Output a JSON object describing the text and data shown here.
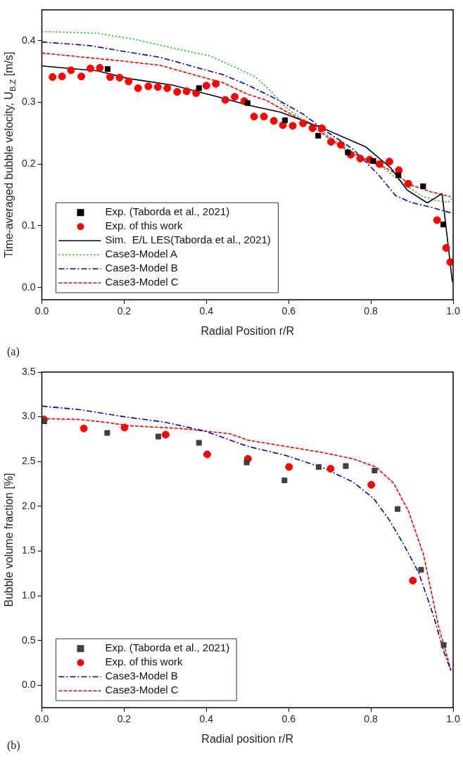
{
  "chart_data": [
    {
      "type": "line",
      "xlabel": "Radial Position r/R",
      "ylabel": "Time-averaged bubble velocity, U$_{B,Z}$ [m/s]",
      "annotations": [
        "(a)"
      ],
      "xlim": [
        0,
        1
      ],
      "ylim": [
        -0.02,
        0.45
      ],
      "xticks": [
        {
          "value": 0,
          "label": "0.0"
        },
        {
          "value": 0.2,
          "label": "0.2"
        },
        {
          "value": 0.4,
          "label": "0.4"
        },
        {
          "value": 0.6,
          "label": "0.6"
        },
        {
          "value": 0.8,
          "label": "0.8"
        },
        {
          "value": 1,
          "label": "1.0"
        }
      ],
      "yticks": [
        {
          "value": 0,
          "label": "0.0"
        },
        {
          "value": 0.1,
          "label": "0.1"
        },
        {
          "value": 0.2,
          "label": "0.2"
        },
        {
          "value": 0.3,
          "label": "0.3"
        },
        {
          "value": 0.4,
          "label": "0.4"
        }
      ],
      "grid": false,
      "legend": "bottom left",
      "series": [
        {
          "name": "Exp. (Taborda et al., 2021)",
          "type": "scatter",
          "marker": "square",
          "color": "#000000",
          "x": [
            0.16,
            0.382,
            0.5,
            0.591,
            0.672,
            0.744,
            0.806,
            0.867,
            0.927,
            0.976
          ],
          "values": [
            0.354,
            0.323,
            0.299,
            0.271,
            0.246,
            0.219,
            0.205,
            0.182,
            0.164,
            0.102
          ]
        },
        {
          "name": "Exp. of this work",
          "type": "scatter",
          "marker": "circle",
          "color": "#ff0000",
          "x": [
            0.026,
            0.049,
            0.071,
            0.096,
            0.118,
            0.141,
            0.166,
            0.189,
            0.211,
            0.234,
            0.259,
            0.282,
            0.305,
            0.329,
            0.352,
            0.375,
            0.4,
            0.423,
            0.446,
            0.469,
            0.492,
            0.516,
            0.54,
            0.564,
            0.586,
            0.61,
            0.635,
            0.658,
            0.681,
            0.703,
            0.727,
            0.751,
            0.774,
            0.797,
            0.821,
            0.845,
            0.868,
            0.891,
            0.961,
            0.983,
            0.993
          ],
          "values": [
            0.341,
            0.342,
            0.352,
            0.342,
            0.355,
            0.356,
            0.341,
            0.34,
            0.334,
            0.323,
            0.326,
            0.325,
            0.323,
            0.317,
            0.318,
            0.315,
            0.327,
            0.33,
            0.304,
            0.309,
            0.302,
            0.277,
            0.277,
            0.27,
            0.263,
            0.262,
            0.266,
            0.258,
            0.258,
            0.236,
            0.231,
            0.215,
            0.209,
            0.207,
            0.2,
            0.204,
            0.19,
            0.168,
            0.109,
            0.064,
            0.041
          ]
        },
        {
          "name": "Sim.  E/L LES(Taborda et al., 2021)",
          "type": "line",
          "marker": "none",
          "line_style": "solid",
          "color": "#000000",
          "x": [
            0,
            0.135,
            0.208,
            0.318,
            0.44,
            0.498,
            0.58,
            0.677,
            0.787,
            0.848,
            0.888,
            0.937,
            0.973,
            0.982,
            0.998
          ],
          "values": [
            0.359,
            0.351,
            0.339,
            0.328,
            0.307,
            0.296,
            0.284,
            0.26,
            0.228,
            0.194,
            0.158,
            0.137,
            0.152,
            0.102,
            0.009
          ]
        },
        {
          "name": "Case3-Model A",
          "type": "line",
          "marker": "none",
          "line_style": "dotted",
          "color": "#00c000",
          "x": [
            0,
            0.135,
            0.227,
            0.318,
            0.41,
            0.483,
            0.519,
            0.556,
            0.586,
            0.623,
            0.665,
            0.702,
            0.744,
            0.787,
            0.83,
            0.872,
            0.921,
            0.958,
            0.988,
            1
          ],
          "values": [
            0.415,
            0.412,
            0.402,
            0.388,
            0.375,
            0.353,
            0.341,
            0.319,
            0.296,
            0.277,
            0.262,
            0.243,
            0.224,
            0.209,
            0.194,
            0.172,
            0.149,
            0.141,
            0.138,
            0.147
          ]
        },
        {
          "name": "Case3-Model B",
          "type": "line",
          "marker": "none",
          "line_style": "dashdot",
          "color": "#0000cc",
          "x": [
            0,
            0.117,
            0.196,
            0.288,
            0.379,
            0.44,
            0.501,
            0.574,
            0.635,
            0.696,
            0.757,
            0.818,
            0.86,
            0.897,
            0.946,
            0.994
          ],
          "values": [
            0.398,
            0.392,
            0.383,
            0.373,
            0.356,
            0.345,
            0.328,
            0.304,
            0.281,
            0.251,
            0.224,
            0.183,
            0.149,
            0.138,
            0.13,
            0.121
          ]
        },
        {
          "name": "Case3-Model C",
          "type": "line",
          "marker": "none",
          "line_style": "dashed",
          "color": "#ff0000",
          "x": [
            0,
            0.105,
            0.196,
            0.288,
            0.379,
            0.44,
            0.501,
            0.544,
            0.605,
            0.653,
            0.696,
            0.745,
            0.793,
            0.848,
            0.897,
            0.946,
            0.994
          ],
          "values": [
            0.38,
            0.373,
            0.367,
            0.36,
            0.343,
            0.332,
            0.313,
            0.304,
            0.281,
            0.264,
            0.243,
            0.221,
            0.206,
            0.19,
            0.166,
            0.155,
            0.147
          ]
        }
      ]
    },
    {
      "type": "line",
      "xlabel": "Radial position r/R",
      "ylabel": "Bubble volume fraction [%]",
      "annotations": [
        "(b)"
      ],
      "xlim": [
        0,
        1
      ],
      "ylim": [
        -0.25,
        3.5
      ],
      "xticks": [
        {
          "value": 0,
          "label": "0.0"
        },
        {
          "value": 0.2,
          "label": "0.2"
        },
        {
          "value": 0.4,
          "label": "0.4"
        },
        {
          "value": 0.6,
          "label": "0.6"
        },
        {
          "value": 0.8,
          "label": "0.8"
        },
        {
          "value": 1,
          "label": "1.0"
        }
      ],
      "yticks": [
        {
          "value": 0,
          "label": "0.0"
        },
        {
          "value": 0.5,
          "label": "0.5"
        },
        {
          "value": 1,
          "label": "1.0"
        },
        {
          "value": 1.5,
          "label": "1.5"
        },
        {
          "value": 2,
          "label": "2.0"
        },
        {
          "value": 2.5,
          "label": "2.5"
        },
        {
          "value": 3,
          "label": "3.0"
        },
        {
          "value": 3.5,
          "label": "3.5"
        }
      ],
      "grid": false,
      "legend": "bottom left",
      "series": [
        {
          "name": "Exp. (Taborda et al., 2021)",
          "type": "scatter",
          "marker": "square",
          "color": "#404040",
          "x": [
            0.006,
            0.159,
            0.283,
            0.382,
            0.498,
            0.59,
            0.673,
            0.739,
            0.809,
            0.865,
            0.922,
            0.977
          ],
          "values": [
            2.95,
            2.82,
            2.78,
            2.71,
            2.49,
            2.29,
            2.44,
            2.45,
            2.4,
            1.97,
            1.29,
            0.45
          ]
        },
        {
          "name": "Exp. of this work",
          "type": "scatter",
          "marker": "circle",
          "color": "#ff0000",
          "x": [
            0.005,
            0.102,
            0.201,
            0.301,
            0.402,
            0.501,
            0.601,
            0.702,
            0.801,
            0.902
          ],
          "values": [
            2.97,
            2.87,
            2.88,
            2.8,
            2.58,
            2.53,
            2.44,
            2.42,
            2.24,
            1.17
          ]
        },
        {
          "name": "Case3-Model B",
          "type": "line",
          "marker": "none",
          "line_style": "dashdot",
          "color": "#0000cc",
          "x": [
            0,
            0.092,
            0.201,
            0.299,
            0.397,
            0.5,
            0.592,
            0.684,
            0.757,
            0.806,
            0.843,
            0.879,
            0.916,
            0.952,
            0.977,
            0.995
          ],
          "values": [
            3.12,
            3.08,
            3.0,
            2.94,
            2.84,
            2.67,
            2.57,
            2.43,
            2.27,
            2.09,
            1.86,
            1.58,
            1.26,
            0.78,
            0.38,
            0.16
          ]
        },
        {
          "name": "Case3-Model C",
          "type": "line",
          "marker": "none",
          "line_style": "dashed",
          "color": "#ff0000",
          "x": [
            0,
            0.092,
            0.153,
            0.214,
            0.336,
            0.458,
            0.5,
            0.592,
            0.684,
            0.757,
            0.812,
            0.855,
            0.891,
            0.928,
            0.964,
            0.995
          ],
          "values": [
            2.98,
            2.97,
            2.94,
            2.9,
            2.87,
            2.81,
            2.74,
            2.67,
            2.6,
            2.53,
            2.44,
            2.26,
            1.95,
            1.46,
            0.67,
            0.16
          ]
        }
      ]
    }
  ]
}
